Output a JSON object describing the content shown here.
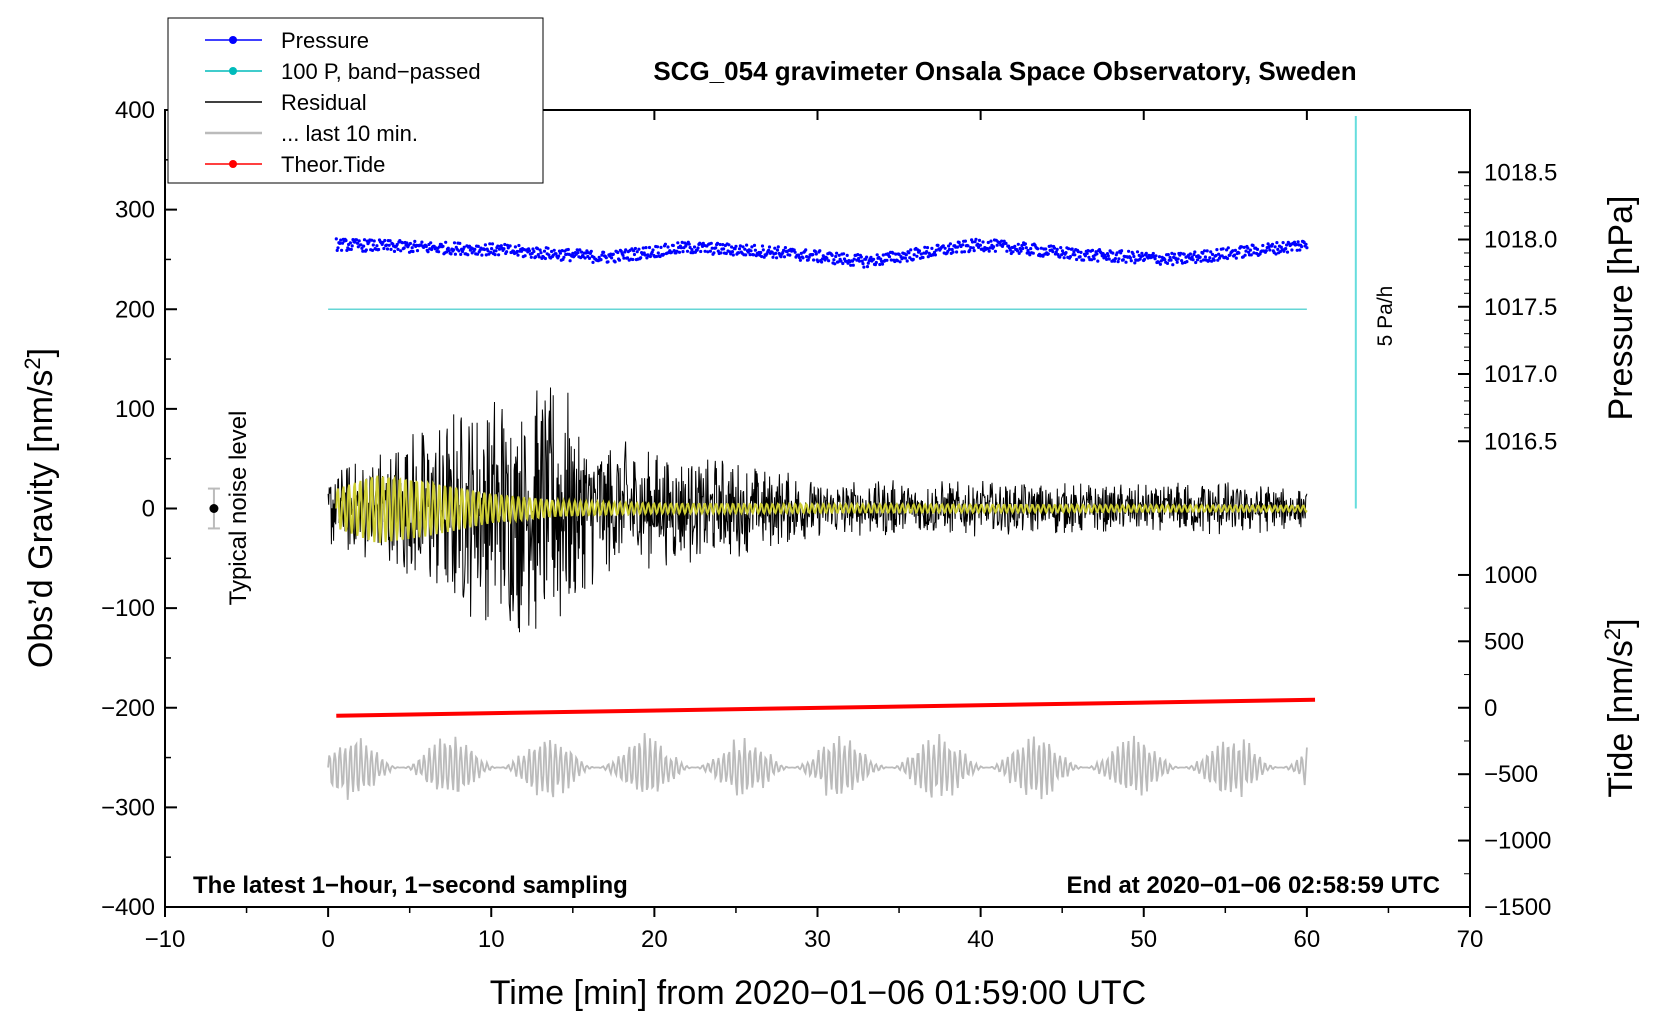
{
  "chart_data": {
    "type": "line",
    "title": "SCG_054 gravimeter Onsala Space Observatory, Sweden",
    "xlabel": "Time [min] from 2020−01−06 01:59:00 UTC",
    "ylabel_left_main": "Obs’d Gravity [nm/s",
    "ylabel_left_sup": "2",
    "ylabel_left_close": "]",
    "ylabel_right_pressure": "Pressure [hPa]",
    "ylabel_right_tide_main": "Tide [nm/s",
    "ylabel_right_tide_sup": "2",
    "ylabel_right_tide_close": "]",
    "xlim": [
      -10,
      70
    ],
    "ylim": [
      -400,
      400
    ],
    "x_ticks": [
      -10,
      0,
      10,
      20,
      30,
      40,
      50,
      60,
      70
    ],
    "x_tick_labels": [
      "−10",
      "0",
      "10",
      "20",
      "30",
      "40",
      "50",
      "60",
      "70"
    ],
    "y_ticks": [
      -400,
      -300,
      -200,
      -100,
      0,
      100,
      200,
      300,
      400
    ],
    "y_tick_labels": [
      "−400",
      "−300",
      "−200",
      "−100",
      "0",
      "100",
      "200",
      "300",
      "400"
    ],
    "pressure_axis": {
      "ticks": [
        1016.5,
        1017.0,
        1017.5,
        1018.0,
        1018.5
      ],
      "labels": [
        "1016.5",
        "1017.0",
        "1017.5",
        "1018.0",
        "1018.5"
      ],
      "gravity_equiv": [
        67.5,
        135,
        202.5,
        270,
        337.5
      ]
    },
    "tide_axis": {
      "ticks": [
        -1500,
        -1000,
        -500,
        0,
        500,
        1000
      ],
      "labels": [
        "−1500",
        "−1000",
        "−500",
        "0",
        "500",
        "1000"
      ],
      "gravity_equiv": [
        -400,
        -333.3,
        -266.7,
        -200,
        -133.3,
        -66.7
      ]
    },
    "series": [
      {
        "name": "Pressure",
        "color": "#0000ff",
        "offset_gravity_units": 258,
        "x_range": [
          0.5,
          60
        ],
        "trend_points": [
          [
            0.5,
            265
          ],
          [
            10,
            260
          ],
          [
            17,
            252
          ],
          [
            22,
            262
          ],
          [
            27,
            258
          ],
          [
            33,
            248
          ],
          [
            40,
            265
          ],
          [
            46,
            255
          ],
          [
            52,
            250
          ],
          [
            60,
            265
          ]
        ]
      },
      {
        "name": "100 P, band−passed",
        "color": "#00bbbb",
        "x_range": [
          0,
          60
        ],
        "level": 200
      },
      {
        "name": "Residual",
        "color": "#000000",
        "x_range": [
          0,
          60
        ],
        "envelope": [
          [
            0,
            40
          ],
          [
            3,
            60
          ],
          [
            6,
            90
          ],
          [
            10,
            120
          ],
          [
            14,
            140
          ],
          [
            16,
            80
          ],
          [
            20,
            60
          ],
          [
            25,
            50
          ],
          [
            30,
            30
          ],
          [
            40,
            28
          ],
          [
            50,
            25
          ],
          [
            55,
            30
          ],
          [
            60,
            20
          ]
        ]
      },
      {
        "name": "... last 10 min.",
        "color": "#bbbbbb",
        "offset_gravity_units": -260,
        "x_range": [
          0,
          60
        ],
        "amplitude": 30
      },
      {
        "name": "Theor.Tide",
        "color": "#ff0000",
        "x_range": [
          0.5,
          60.5
        ],
        "start": -208,
        "end": -192
      },
      {
        "name": "band-passed residual",
        "color": "#cccc33",
        "x_range": [
          0.5,
          60
        ],
        "envelope": [
          [
            0.5,
            20
          ],
          [
            3,
            35
          ],
          [
            6,
            28
          ],
          [
            10,
            15
          ],
          [
            14,
            8
          ],
          [
            20,
            5
          ],
          [
            60,
            3
          ]
        ]
      }
    ],
    "legend": [
      "Pressure",
      "100 P, band−passed",
      "Residual",
      "... last 10 min.",
      "Theor.Tide"
    ],
    "annotations": {
      "noise_level_label": "Typical noise level",
      "noise_level_x": -7,
      "noise_level_range": [
        -20,
        20
      ],
      "rate_label": "5 Pa/h",
      "rate_bar_x": 63,
      "rate_bar_range": [
        0,
        400
      ],
      "bottom_left": "The latest 1−hour, 1−second sampling",
      "bottom_right": "End at 2020−01−06 02:58:59 UTC"
    },
    "colors": {
      "pressure": "#0000ff",
      "bandpassed": "#00bbbb",
      "residual": "#000000",
      "last10": "#bbbbbb",
      "tide": "#ff0000",
      "residual_filtered": "#cccc33"
    }
  }
}
